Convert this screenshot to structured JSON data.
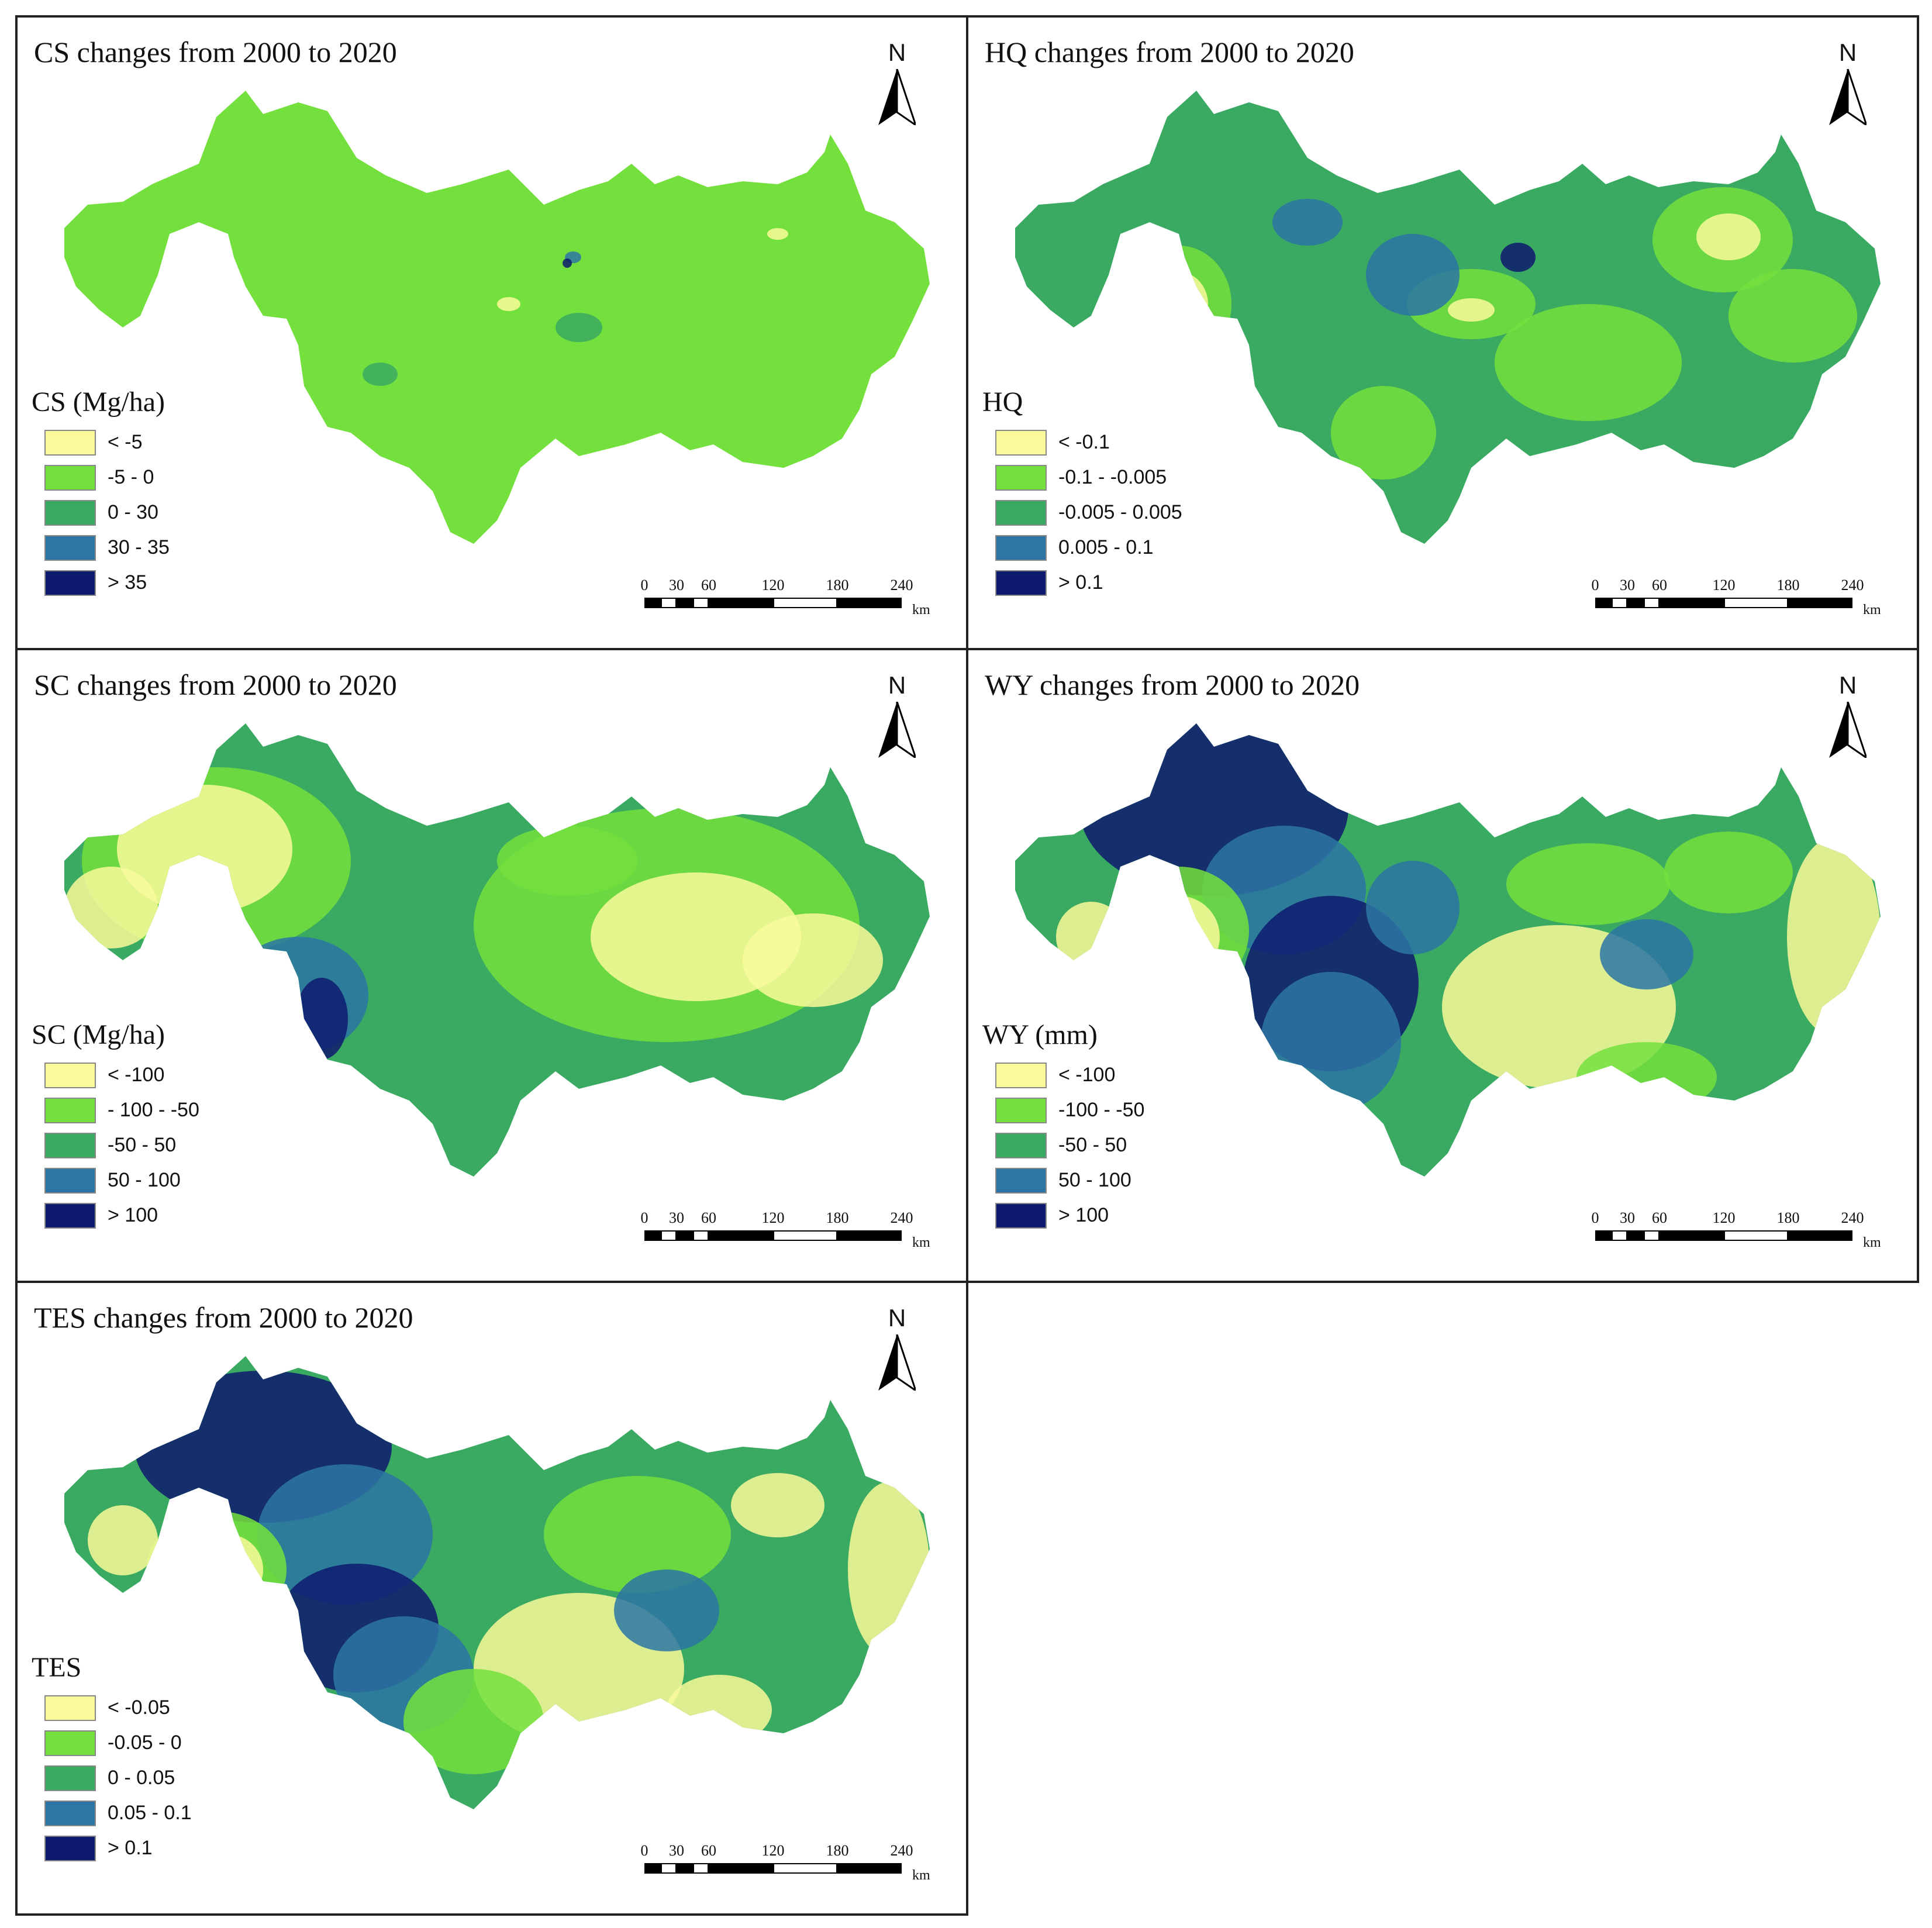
{
  "colors": {
    "class1": "#fafa9a",
    "class2": "#74e03d",
    "class3": "#3aaa62",
    "class4": "#2c75a5",
    "class5": "#0e1a6e",
    "border": "#222222"
  },
  "north_label": "N",
  "scale": {
    "ticks": [
      "0",
      "30",
      "60",
      "120",
      "180",
      "240"
    ],
    "unit": "km"
  },
  "panels": [
    {
      "title": "CS changes from 2000 to 2020",
      "legend_title": "CS (Mg/ha)",
      "legend": [
        "< -5",
        "-5 - 0",
        "0 - 30",
        "30 - 35",
        "> 35"
      ]
    },
    {
      "title": "HQ changes from 2000 to 2020",
      "legend_title": "HQ",
      "legend": [
        "< -0.1",
        "-0.1 - -0.005",
        "-0.005 - 0.005",
        "0.005 - 0.1",
        "> 0.1"
      ]
    },
    {
      "title": "SC changes from 2000 to 2020",
      "legend_title": "SC (Mg/ha)",
      "legend": [
        "< -100",
        "- 100 - -50",
        "-50 - 50",
        "50 - 100",
        "> 100"
      ]
    },
    {
      "title": "WY changes from 2000 to 2020",
      "legend_title": "WY (mm)",
      "legend": [
        "< -100",
        "-100 - -50",
        "-50 - 50",
        "50 - 100",
        "> 100"
      ]
    },
    {
      "title": "TES changes from 2000 to 2020",
      "legend_title": "TES",
      "legend": [
        "< -0.05",
        "-0.05 - 0",
        "0 - 0.05",
        "0.05 - 0.1",
        "> 0.1"
      ]
    }
  ]
}
